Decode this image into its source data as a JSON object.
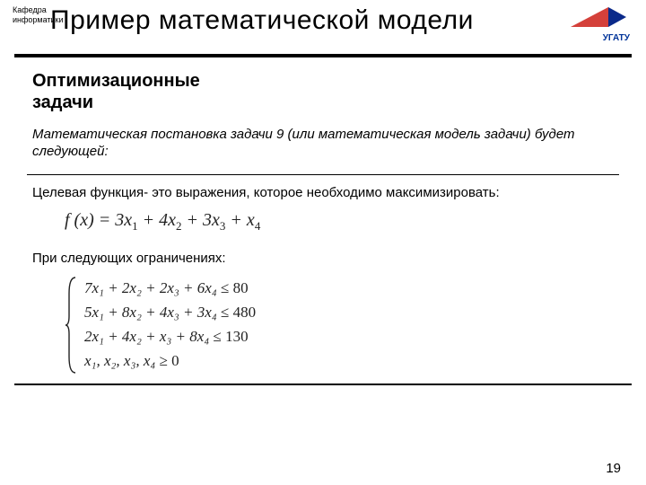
{
  "header": {
    "corner_label_line1": "Кафедра",
    "corner_label_line2": "информатики",
    "title": "Пример математической модели",
    "logo_text": "УГАТУ",
    "logo_colors": {
      "red": "#d4403a",
      "blue": "#0a2a8a"
    }
  },
  "subheading_line1": "Оптимизационные",
  "subheading_line2": "задачи",
  "intro_text": "Математическая постановка задачи 9 (или математическая модель задачи) будет следующей:",
  "para_objective": "Целевая функция- это выражения, которое необходимо максимизировать:",
  "formula_objective": {
    "prefix": "f (x) = ",
    "terms": [
      {
        "coef": "3",
        "var": "x",
        "sub": "1",
        "op": ""
      },
      {
        "coef": "4",
        "var": "x",
        "sub": "2",
        "op": " + "
      },
      {
        "coef": "3",
        "var": "x",
        "sub": "3",
        "op": " + "
      },
      {
        "coef": "",
        "var": "x",
        "sub": "4",
        "op": " + "
      }
    ]
  },
  "para_constraints": "При следующих ограничениях:",
  "constraints": [
    {
      "terms": [
        "7x₁",
        " + 2x₂",
        " + 2x₃",
        " + 6x₄"
      ],
      "rel": " ≤ ",
      "rhs": "80"
    },
    {
      "terms": [
        "5x₁",
        " + 8x₂",
        " + 4x₃",
        " + 3x₄"
      ],
      "rel": " ≤ ",
      "rhs": "480"
    },
    {
      "terms": [
        "2x₁",
        " + 4x₂",
        " +  x₃",
        " + 8x₄"
      ],
      "rel": " ≤ ",
      "rhs": "130"
    },
    {
      "terms": [
        "x₁, x₂, x₃, x₄"
      ],
      "rel": " ≥ ",
      "rhs": "0"
    }
  ],
  "page_number": "19"
}
